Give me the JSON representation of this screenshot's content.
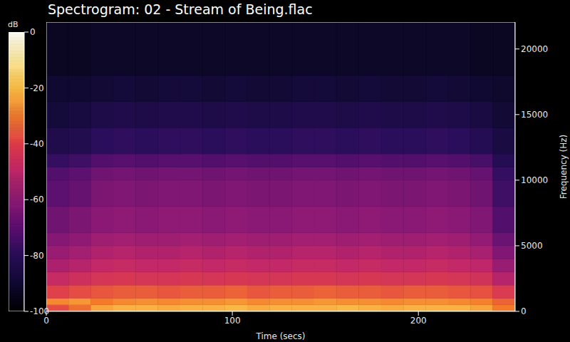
{
  "chart_data": {
    "type": "heatmap",
    "title": "Spectrogram: 02 - Stream of Being.flac",
    "x_label": "Time (secs)",
    "y_label": "Frequency (Hz)",
    "xlim": [
      0,
      252
    ],
    "xticks": [
      0,
      100,
      200
    ],
    "ylim": [
      0,
      22050
    ],
    "yticks": [
      0,
      5000,
      10000,
      15000,
      20000
    ],
    "time_bins": [
      0,
      12,
      24,
      36,
      48,
      60,
      72,
      84,
      96,
      108,
      120,
      132,
      144,
      156,
      168,
      180,
      192,
      204,
      216,
      228,
      240,
      252
    ],
    "frequency_bins": [
      0,
      500,
      1000,
      2000,
      3000,
      4000,
      5000,
      6000,
      8000,
      10000,
      11000,
      12000,
      14000,
      16000,
      18000,
      22050
    ],
    "cells": [
      [
        -38,
        -32,
        -24,
        -22,
        -22,
        -23,
        -22,
        -22,
        -21,
        -23,
        -22,
        -22,
        -22,
        -21,
        -22,
        -23,
        -22,
        -22,
        -22,
        -24,
        -30
      ],
      [
        -28,
        -26,
        -30,
        -28,
        -27,
        -28,
        -27,
        -27,
        -26,
        -28,
        -27,
        -27,
        -26,
        -27,
        -27,
        -28,
        -27,
        -27,
        -28,
        -29,
        -34
      ],
      [
        -40,
        -38,
        -36,
        -35,
        -35,
        -36,
        -35,
        -35,
        -34,
        -36,
        -35,
        -35,
        -34,
        -35,
        -35,
        -36,
        -35,
        -35,
        -36,
        -37,
        -42
      ],
      [
        -48,
        -46,
        -44,
        -43,
        -44,
        -44,
        -43,
        -44,
        -43,
        -44,
        -44,
        -43,
        -43,
        -44,
        -43,
        -44,
        -44,
        -43,
        -44,
        -45,
        -52
      ],
      [
        -54,
        -52,
        -49,
        -48,
        -49,
        -49,
        -48,
        -49,
        -48,
        -49,
        -49,
        -48,
        -48,
        -49,
        -48,
        -49,
        -49,
        -48,
        -49,
        -50,
        -58
      ],
      [
        -58,
        -56,
        -53,
        -52,
        -53,
        -53,
        -52,
        -53,
        -52,
        -53,
        -53,
        -52,
        -52,
        -53,
        -52,
        -53,
        -53,
        -52,
        -53,
        -55,
        -63
      ],
      [
        -62,
        -60,
        -57,
        -56,
        -57,
        -57,
        -56,
        -57,
        -56,
        -57,
        -57,
        -56,
        -56,
        -57,
        -56,
        -57,
        -57,
        -56,
        -57,
        -59,
        -67
      ],
      [
        -66,
        -64,
        -61,
        -60,
        -61,
        -60,
        -60,
        -61,
        -60,
        -61,
        -61,
        -60,
        -60,
        -61,
        -60,
        -61,
        -61,
        -60,
        -61,
        -63,
        -72
      ],
      [
        -70,
        -68,
        -64,
        -63,
        -64,
        -63,
        -63,
        -64,
        -63,
        -64,
        -64,
        -63,
        -63,
        -64,
        -63,
        -64,
        -64,
        -63,
        -64,
        -66,
        -76
      ],
      [
        -72,
        -70,
        -66,
        -65,
        -66,
        -65,
        -65,
        -66,
        -65,
        -66,
        -66,
        -65,
        -65,
        -66,
        -65,
        -66,
        -66,
        -65,
        -66,
        -68,
        -78
      ],
      [
        -78,
        -76,
        -72,
        -71,
        -72,
        -71,
        -71,
        -72,
        -71,
        -72,
        -72,
        -71,
        -71,
        -72,
        -71,
        -72,
        -72,
        -71,
        -72,
        -74,
        -82
      ],
      [
        -84,
        -83,
        -80,
        -79,
        -80,
        -79,
        -79,
        -80,
        -79,
        -80,
        -80,
        -79,
        -79,
        -80,
        -79,
        -80,
        -80,
        -79,
        -80,
        -82,
        -86
      ],
      [
        -88,
        -87,
        -85,
        -84,
        -85,
        -84,
        -84,
        -85,
        -84,
        -85,
        -85,
        -84,
        -84,
        -85,
        -84,
        -85,
        -85,
        -84,
        -85,
        -86,
        -89
      ],
      [
        -90,
        -90,
        -89,
        -88,
        -89,
        -88,
        -88,
        -89,
        -88,
        -89,
        -89,
        -88,
        -88,
        -89,
        -88,
        -89,
        -89,
        -88,
        -89,
        -90,
        -91
      ],
      [
        -93,
        -93,
        -92,
        -92,
        -92,
        -92,
        -92,
        -92,
        -92,
        -92,
        -92,
        -92,
        -92,
        -92,
        -92,
        -92,
        -92,
        -92,
        -92,
        -93,
        -93
      ]
    ],
    "colorbar_label": "dB",
    "colorbar_range": [
      -100,
      0
    ],
    "colorbar_ticks": [
      -100,
      -80,
      -60,
      -40,
      -20,
      0
    ]
  }
}
